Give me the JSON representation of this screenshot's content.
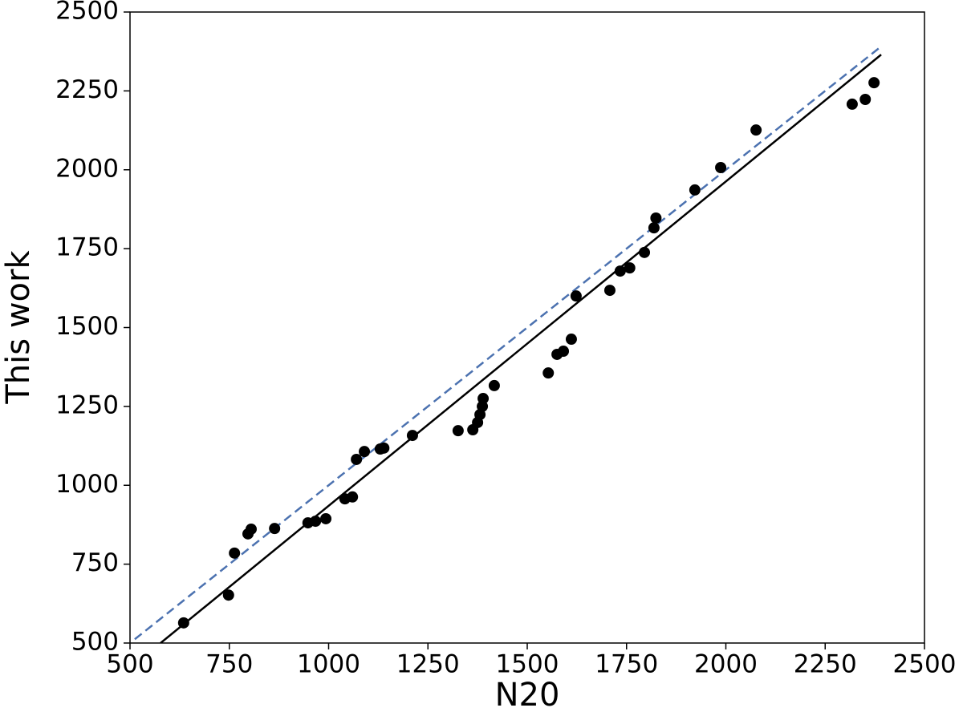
{
  "chart_data": {
    "type": "scatter",
    "xlabel": "N20",
    "ylabel": "This work",
    "xlim": [
      500,
      2500
    ],
    "ylim": [
      500,
      2500
    ],
    "xticks": [
      500,
      750,
      1000,
      1250,
      1500,
      1750,
      2000,
      2250,
      2500
    ],
    "yticks": [
      500,
      750,
      1000,
      1250,
      1500,
      1750,
      2000,
      2250,
      2500
    ],
    "series": [
      {
        "color": "#000000",
        "x": [
          635,
          748,
          763,
          797,
          805,
          864,
          948,
          967,
          993,
          1041,
          1060,
          1070,
          1090,
          1130,
          1139,
          1211,
          1326,
          1363,
          1375,
          1381,
          1387,
          1389,
          1417,
          1553,
          1575,
          1591,
          1611,
          1623,
          1708,
          1734,
          1758,
          1795,
          1819,
          1824,
          1922,
          1987,
          2076,
          2318,
          2351,
          2373
        ],
        "y": [
          564,
          652,
          785,
          846,
          861,
          863,
          881,
          886,
          894,
          957,
          963,
          1082,
          1107,
          1115,
          1118,
          1158,
          1173,
          1176,
          1199,
          1224,
          1250,
          1275,
          1316,
          1356,
          1415,
          1425,
          1463,
          1600,
          1618,
          1679,
          1689,
          1738,
          1816,
          1847,
          1936,
          2007,
          2126,
          2208,
          2223,
          2276
        ]
      }
    ],
    "lines": [
      {
        "color": "#000000",
        "style": "solid",
        "x": [
          577,
          2391
        ],
        "y": [
          500,
          2365
        ]
      },
      {
        "color": "#4c72b0",
        "style": "dashed",
        "x": [
          512,
          2391
        ],
        "y": [
          512,
          2391
        ]
      }
    ]
  }
}
